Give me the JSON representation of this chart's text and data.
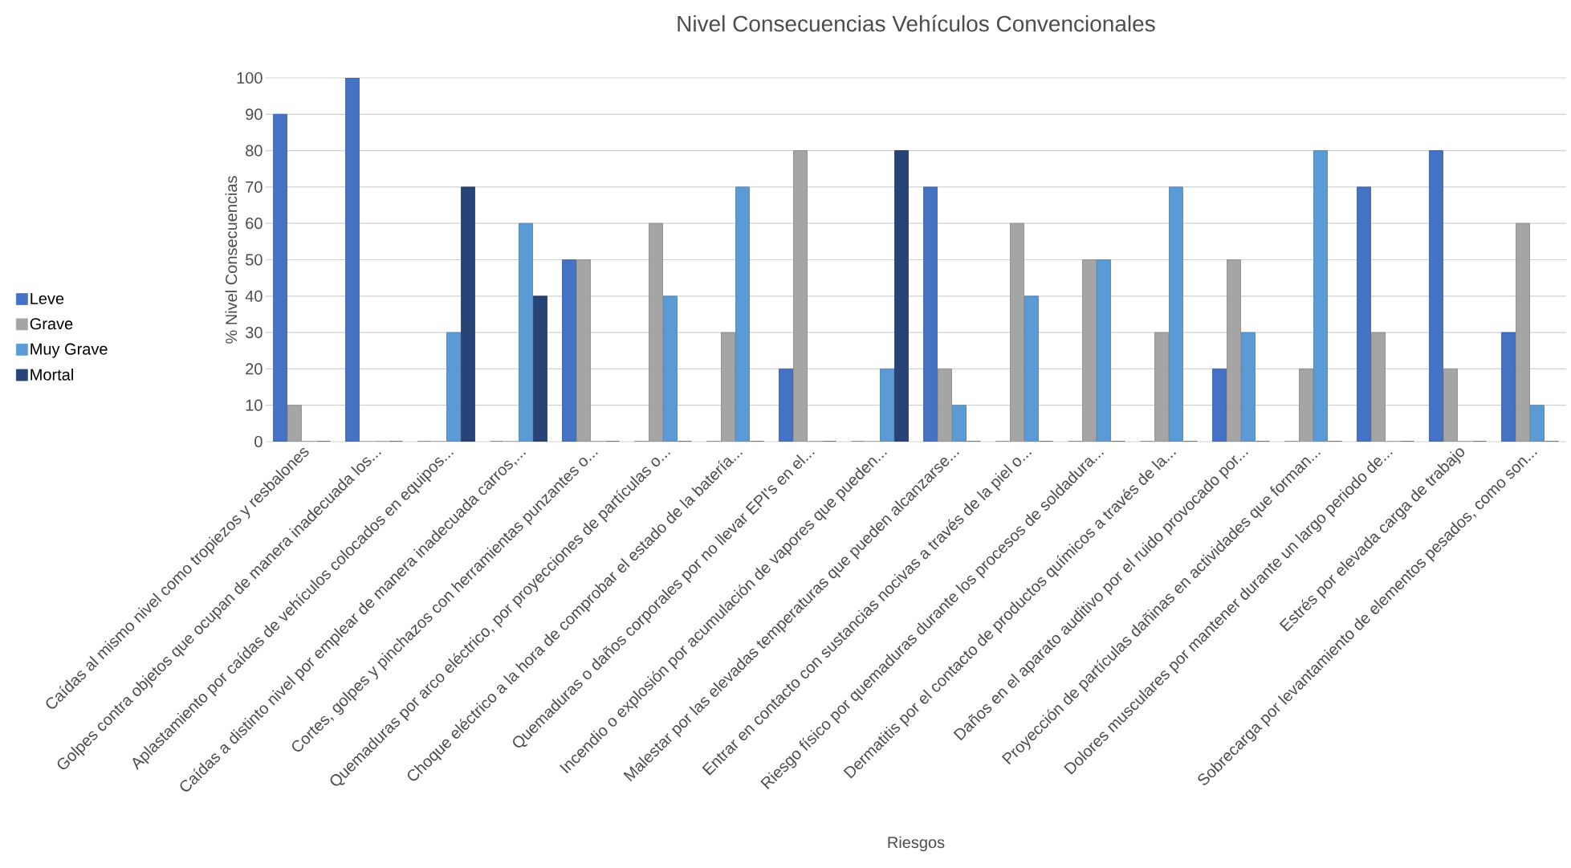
{
  "chart_data": {
    "type": "bar",
    "title": "Nivel Consecuencias Vehículos Convencionales",
    "xlabel": "Riesgos",
    "ylabel": "% Nivel Consecuencias",
    "categories": [
      "Caídas al mismo nivel como tropiezos y resbalones",
      "Golpes contra objetos que ocupan de manera inadecuada los...",
      "Aplastamiento por caídas de vehículos colocados en equipos...",
      "Caídas a distinto nivel por emplear de manera inadecuada carros,...",
      "Cortes, golpes y pinchazos con herramientas punzantes o...",
      "Quemaduras por arco eléctrico, por proyecciones de partículas o...",
      "Choque eléctrico a la hora de comprobar el estado de la batería...",
      "Quemaduras o daños corporales por no llevar EPI's en el...",
      "Incendio o explosión por acumulación de vapores que pueden...",
      "Malestar por las elevadas temperaturas que pueden alcanzarse...",
      "Entrar en contacto con sustancias nocivas a través de la piel o...",
      "Riesgo físico por quemaduras durante los procesos de soldadura...",
      "Dermatitis por el contacto de productos químicos a través de la...",
      "Daños en el aparato auditivo por el ruido provocado por...",
      "Proyección de partículas dañinas en actividades que forman...",
      "Dolores musculares por mantener durante un largo periodo de...",
      "Estrés por elevada carga de trabajo",
      "Sobrecarga por levantamiento de elementos pesados, como son..."
    ],
    "series": [
      {
        "name": "Leve",
        "color": "#4472c4",
        "values": [
          90,
          100,
          0,
          0,
          50,
          0,
          0,
          20,
          0,
          70,
          0,
          0,
          0,
          20,
          0,
          70,
          80,
          30
        ]
      },
      {
        "name": "Grave",
        "color": "#a5a5a5",
        "values": [
          10,
          0,
          0,
          0,
          50,
          60,
          30,
          80,
          0,
          20,
          60,
          50,
          30,
          50,
          20,
          30,
          20,
          60
        ]
      },
      {
        "name": "Muy Grave",
        "color": "#5b9bd5",
        "values": [
          0,
          0,
          30,
          60,
          0,
          40,
          70,
          0,
          20,
          10,
          40,
          50,
          70,
          30,
          80,
          0,
          0,
          10
        ]
      },
      {
        "name": "Mortal",
        "color": "#264478",
        "values": [
          0,
          0,
          70,
          40,
          0,
          0,
          0,
          0,
          80,
          0,
          0,
          0,
          0,
          0,
          0,
          0,
          0,
          0
        ]
      }
    ],
    "ylim": [
      0,
      100
    ],
    "yticks": [
      0,
      10,
      20,
      30,
      40,
      50,
      60,
      70,
      80,
      90,
      100
    ],
    "grid": "y",
    "legend": "left"
  }
}
